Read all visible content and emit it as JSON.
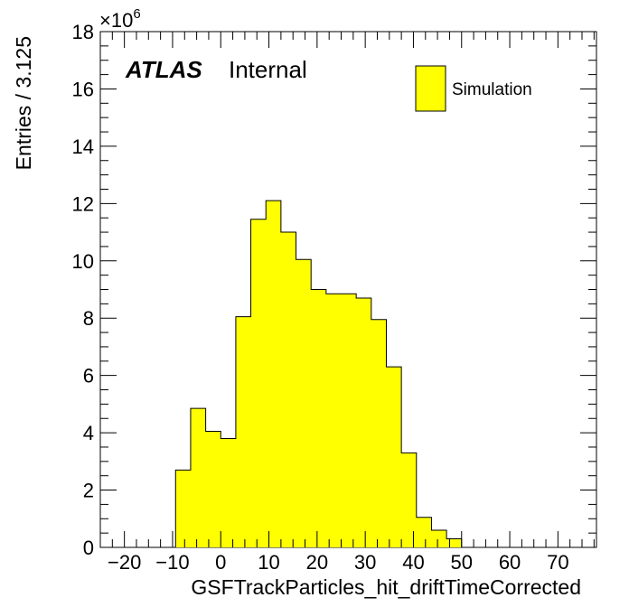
{
  "chart_data": {
    "type": "histogram",
    "xlabel": "GSFTrackParticles_hit_driftTimeCorrected",
    "ylabel": "Entries / 3.125",
    "xlim": [
      -25,
      78
    ],
    "ylim": [
      0,
      18
    ],
    "y_multiplier_label": "×10",
    "y_multiplier_exp": "6",
    "bin_width": 3.125,
    "bins_start": -9.375,
    "values": [
      2.7,
      4.85,
      4.05,
      3.8,
      8.05,
      11.45,
      12.1,
      11.0,
      10.05,
      9.0,
      8.85,
      8.85,
      8.7,
      7.95,
      6.3,
      3.3,
      1.05,
      0.6,
      0.3
    ],
    "x_ticks": [
      -20,
      -10,
      0,
      10,
      20,
      30,
      40,
      50,
      60,
      70
    ],
    "x_tick_labels": [
      "−20",
      "−10",
      "0",
      "10",
      "20",
      "30",
      "40",
      "50",
      "60",
      "70"
    ],
    "y_ticks": [
      0,
      2,
      4,
      6,
      8,
      10,
      12,
      14,
      16,
      18
    ],
    "y_tick_labels": [
      "0",
      "2",
      "4",
      "6",
      "8",
      "10",
      "12",
      "14",
      "16",
      "18"
    ],
    "fill_color": "#ffff00",
    "line_color": "#000000",
    "legend": {
      "placement": "top-right",
      "entries": [
        {
          "name": "Simulation",
          "color": "#ffff00"
        }
      ]
    }
  },
  "annotation": {
    "atlas": "ATLAS",
    "internal": "Internal"
  }
}
